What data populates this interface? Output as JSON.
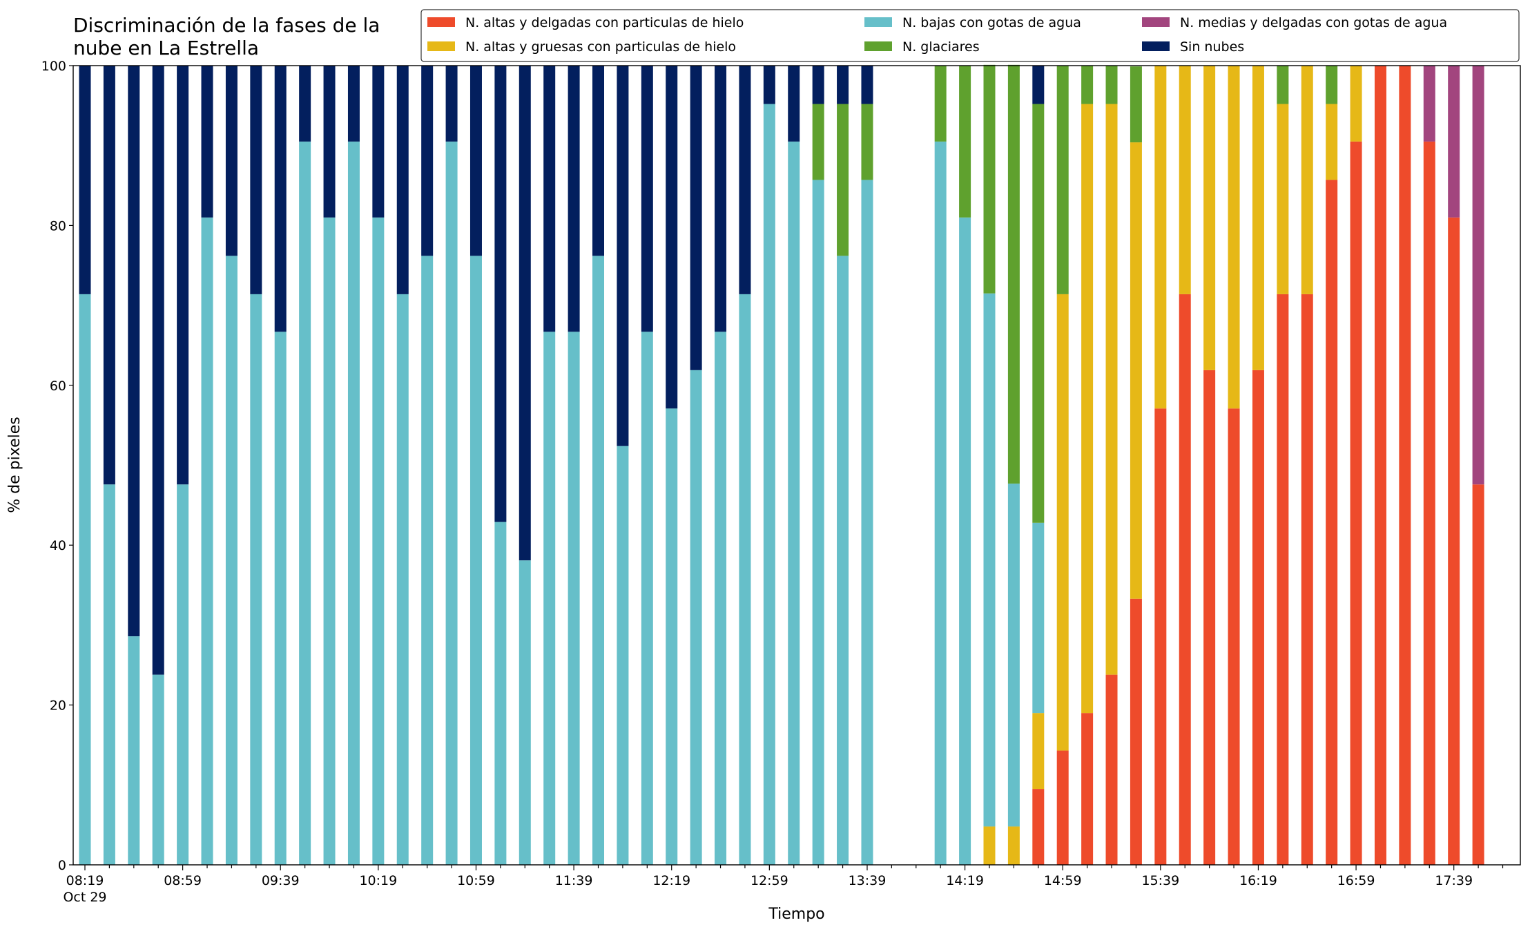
{
  "chart_data": {
    "type": "stacked_bar",
    "title": "Discriminación de la fases de la nube en La Estrella",
    "x_label": "Tiempo",
    "y_label": "% de pixeles",
    "date_label": "Oct 29",
    "categories": [
      "08:19",
      null,
      null,
      null,
      "08:59",
      null,
      null,
      null,
      "09:39",
      null,
      null,
      null,
      "10:19",
      null,
      null,
      null,
      "10:59",
      null,
      null,
      null,
      "11:39",
      null,
      null,
      null,
      "12:19",
      null,
      null,
      null,
      "12:59",
      null,
      null,
      null,
      "13:39",
      null,
      null,
      null,
      "14:19",
      null,
      null,
      null,
      "14:59",
      null,
      null,
      null,
      "15:39",
      null,
      null,
      null,
      "16:19",
      null,
      null,
      null,
      "16:59",
      null,
      null,
      null,
      "17:39",
      null,
      null
    ],
    "ylim": [
      0,
      100
    ],
    "yticks": [
      0,
      20,
      40,
      60,
      80,
      100
    ],
    "grid": false,
    "legend": "top right",
    "series": [
      {
        "name": "N. altas y delgadas con particulas de hielo",
        "color": "#ee4b2b",
        "values": [
          0,
          0,
          0,
          0,
          0,
          0,
          0,
          0,
          0,
          0,
          0,
          0,
          0,
          0,
          0,
          0,
          0,
          0,
          0,
          0,
          0,
          0,
          0,
          0,
          0,
          0,
          0,
          0,
          0,
          0,
          0,
          0,
          0,
          null,
          null,
          0,
          0,
          0,
          0,
          9.5,
          14.3,
          19,
          23.8,
          33.3,
          57.1,
          71.4,
          61.9,
          57.1,
          61.9,
          71.4,
          71.4,
          85.7,
          90.5,
          100,
          100,
          90.5,
          81,
          47.6,
          null
        ]
      },
      {
        "name": "N. altas y gruesas con particulas de hielo",
        "color": "#e6b817",
        "values": [
          0,
          0,
          0,
          0,
          0,
          0,
          0,
          0,
          0,
          0,
          0,
          0,
          0,
          0,
          0,
          0,
          0,
          0,
          0,
          0,
          0,
          0,
          0,
          0,
          0,
          0,
          0,
          0,
          0,
          0,
          0,
          0,
          0,
          null,
          null,
          0,
          0,
          4.8,
          4.8,
          9.5,
          57.1,
          76.2,
          71.4,
          57.1,
          42.9,
          28.6,
          38.1,
          42.9,
          38.1,
          23.8,
          28.6,
          9.5,
          9.5,
          0,
          0,
          0,
          0,
          0,
          null
        ]
      },
      {
        "name": "N. bajas con gotas de agua",
        "color": "#66bfc9",
        "values": [
          71.4,
          47.6,
          28.6,
          23.8,
          47.6,
          81,
          76.2,
          71.4,
          66.7,
          90.5,
          81,
          90.5,
          81,
          71.4,
          76.2,
          90.5,
          76.2,
          42.9,
          38.1,
          66.7,
          66.7,
          76.2,
          52.4,
          66.7,
          57.1,
          61.9,
          66.7,
          71.4,
          95.2,
          90.5,
          85.7,
          76.2,
          85.7,
          null,
          null,
          90.5,
          81,
          66.7,
          42.9,
          23.8,
          0,
          0,
          0,
          0,
          0,
          0,
          0,
          0,
          0,
          0,
          0,
          0,
          0,
          0,
          0,
          0,
          0,
          0,
          null
        ]
      },
      {
        "name": "N. glaciares",
        "color": "#5fa12e",
        "values": [
          0,
          0,
          0,
          0,
          0,
          0,
          0,
          0,
          0,
          0,
          0,
          0,
          0,
          0,
          0,
          0,
          0,
          0,
          0,
          0,
          0,
          0,
          0,
          0,
          0,
          0,
          0,
          0,
          0,
          0,
          9.5,
          19,
          9.5,
          null,
          null,
          9.5,
          19,
          28.6,
          52.4,
          52.4,
          28.6,
          4.8,
          4.8,
          9.5,
          0,
          0,
          0,
          0,
          0,
          4.8,
          0,
          4.8,
          0,
          0,
          0,
          0,
          0,
          0,
          null
        ]
      },
      {
        "name": "N. medias y delgadas con gotas de agua",
        "color": "#a2457e",
        "values": [
          0,
          0,
          0,
          0,
          0,
          0,
          0,
          0,
          0,
          0,
          0,
          0,
          0,
          0,
          0,
          0,
          0,
          0,
          0,
          0,
          0,
          0,
          0,
          0,
          0,
          0,
          0,
          0,
          0,
          0,
          0,
          0,
          0,
          null,
          null,
          0,
          0,
          0,
          0,
          0,
          0,
          0,
          0,
          0,
          0,
          0,
          0,
          0,
          0,
          0,
          0,
          0,
          0,
          0,
          0,
          9.5,
          19,
          52.4,
          null
        ]
      },
      {
        "name": "Sin nubes",
        "color": "#031f5e",
        "values": [
          28.6,
          52.4,
          71.4,
          76.2,
          52.4,
          19,
          23.8,
          28.6,
          33.3,
          9.5,
          19,
          9.5,
          19,
          28.6,
          23.8,
          9.5,
          23.8,
          57.1,
          61.9,
          33.3,
          33.3,
          23.8,
          47.6,
          33.3,
          42.9,
          38.1,
          33.3,
          28.6,
          4.8,
          9.5,
          4.8,
          4.8,
          4.8,
          null,
          null,
          0,
          0,
          0,
          0,
          4.8,
          0,
          0,
          0,
          0,
          0,
          0,
          0,
          0,
          0,
          0,
          0,
          0,
          0,
          0,
          0,
          0,
          0,
          0,
          null
        ]
      }
    ]
  }
}
